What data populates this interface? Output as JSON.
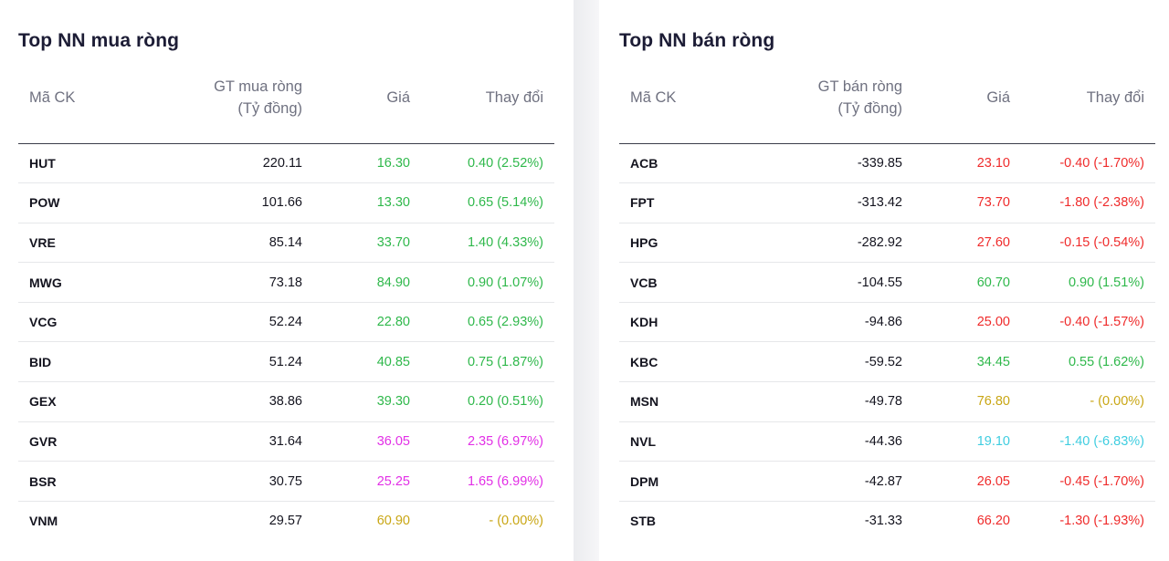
{
  "colors": {
    "up": "#2fb84b",
    "down": "#ef2b2b",
    "ref": "#c9a614",
    "ceil": "#e22fe6",
    "floor": "#3fcde0"
  },
  "buy": {
    "title": "Top NN mua ròng",
    "headers": {
      "symbol": "Mã CK",
      "value_line1": "GT mua ròng",
      "value_line2": "(Tỷ đồng)",
      "price": "Giá",
      "change": "Thay đổi"
    },
    "rows": [
      {
        "symbol": "HUT",
        "value": "220.11",
        "price": "16.30",
        "change": "0.40 (2.52%)",
        "status": "up"
      },
      {
        "symbol": "POW",
        "value": "101.66",
        "price": "13.30",
        "change": "0.65 (5.14%)",
        "status": "up"
      },
      {
        "symbol": "VRE",
        "value": "85.14",
        "price": "33.70",
        "change": "1.40 (4.33%)",
        "status": "up"
      },
      {
        "symbol": "MWG",
        "value": "73.18",
        "price": "84.90",
        "change": "0.90 (1.07%)",
        "status": "up"
      },
      {
        "symbol": "VCG",
        "value": "52.24",
        "price": "22.80",
        "change": "0.65 (2.93%)",
        "status": "up"
      },
      {
        "symbol": "BID",
        "value": "51.24",
        "price": "40.85",
        "change": "0.75 (1.87%)",
        "status": "up"
      },
      {
        "symbol": "GEX",
        "value": "38.86",
        "price": "39.30",
        "change": "0.20 (0.51%)",
        "status": "up"
      },
      {
        "symbol": "GVR",
        "value": "31.64",
        "price": "36.05",
        "change": "2.35 (6.97%)",
        "status": "ceil"
      },
      {
        "symbol": "BSR",
        "value": "30.75",
        "price": "25.25",
        "change": "1.65 (6.99%)",
        "status": "ceil"
      },
      {
        "symbol": "VNM",
        "value": "29.57",
        "price": "60.90",
        "change": "- (0.00%)",
        "status": "ref"
      }
    ]
  },
  "sell": {
    "title": "Top NN bán ròng",
    "headers": {
      "symbol": "Mã CK",
      "value_line1": "GT bán ròng",
      "value_line2": "(Tỷ đồng)",
      "price": "Giá",
      "change": "Thay đổi"
    },
    "rows": [
      {
        "symbol": "ACB",
        "value": "-339.85",
        "price": "23.10",
        "change": "-0.40 (-1.70%)",
        "status": "down"
      },
      {
        "symbol": "FPT",
        "value": "-313.42",
        "price": "73.70",
        "change": "-1.80 (-2.38%)",
        "status": "down"
      },
      {
        "symbol": "HPG",
        "value": "-282.92",
        "price": "27.60",
        "change": "-0.15 (-0.54%)",
        "status": "down"
      },
      {
        "symbol": "VCB",
        "value": "-104.55",
        "price": "60.70",
        "change": "0.90 (1.51%)",
        "status": "up"
      },
      {
        "symbol": "KDH",
        "value": "-94.86",
        "price": "25.00",
        "change": "-0.40 (-1.57%)",
        "status": "down"
      },
      {
        "symbol": "KBC",
        "value": "-59.52",
        "price": "34.45",
        "change": "0.55 (1.62%)",
        "status": "up"
      },
      {
        "symbol": "MSN",
        "value": "-49.78",
        "price": "76.80",
        "change": "- (0.00%)",
        "status": "ref"
      },
      {
        "symbol": "NVL",
        "value": "-44.36",
        "price": "19.10",
        "change": "-1.40 (-6.83%)",
        "status": "floor"
      },
      {
        "symbol": "DPM",
        "value": "-42.87",
        "price": "26.05",
        "change": "-0.45 (-1.70%)",
        "status": "down"
      },
      {
        "symbol": "STB",
        "value": "-31.33",
        "price": "66.20",
        "change": "-1.30 (-1.93%)",
        "status": "down"
      }
    ]
  }
}
